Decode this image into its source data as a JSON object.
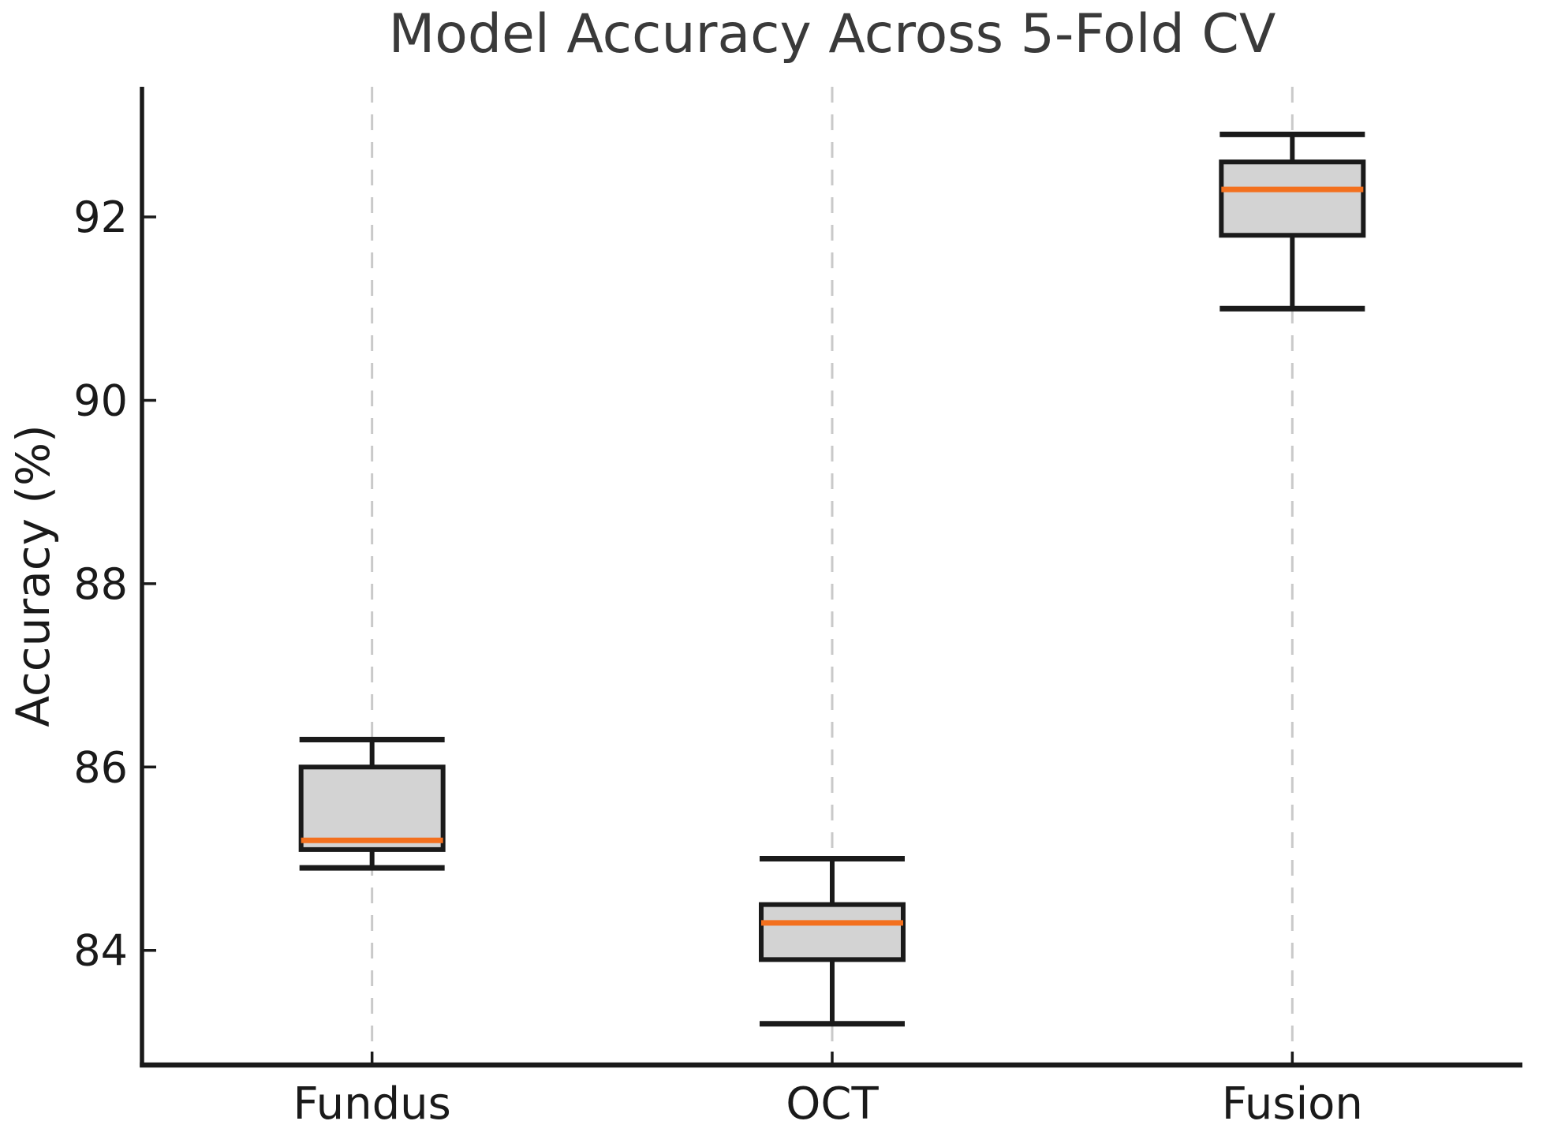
{
  "page": {
    "background": "#ffffff"
  },
  "chart_data": {
    "type": "boxplot",
    "title": "Model Accuracy Across 5-Fold CV",
    "xlabel": "",
    "ylabel": "Accuracy (%)",
    "categories": [
      "Fundus",
      "OCT",
      "Fusion"
    ],
    "yticks": [
      84,
      86,
      88,
      90,
      92
    ],
    "ylim": [
      82.75,
      93.42
    ],
    "grid": "vertical dashed gridline at each category, no horizontal grid",
    "legend": "none",
    "boxes": [
      {
        "category": "Fundus",
        "whisker_low": 84.9,
        "q1": 85.1,
        "median": 85.2,
        "q3": 86.0,
        "whisker_high": 86.3
      },
      {
        "category": "OCT",
        "whisker_low": 83.2,
        "q1": 83.9,
        "median": 84.3,
        "q3": 84.5,
        "whisker_high": 85.0
      },
      {
        "category": "Fusion",
        "whisker_low": 91.0,
        "q1": 91.8,
        "median": 92.3,
        "q3": 92.6,
        "whisker_high": 92.9
      }
    ],
    "colors": {
      "box_fill": "#d3d3d3",
      "box_edge": "#1a1a1a",
      "median_line": "#f3701e",
      "whisker": "#1a1a1a",
      "gridline": "#c9c9c9",
      "spine": "#1a1a1a",
      "title_text": "#3a3a3a",
      "tick_text": "#1a1a1a"
    }
  }
}
